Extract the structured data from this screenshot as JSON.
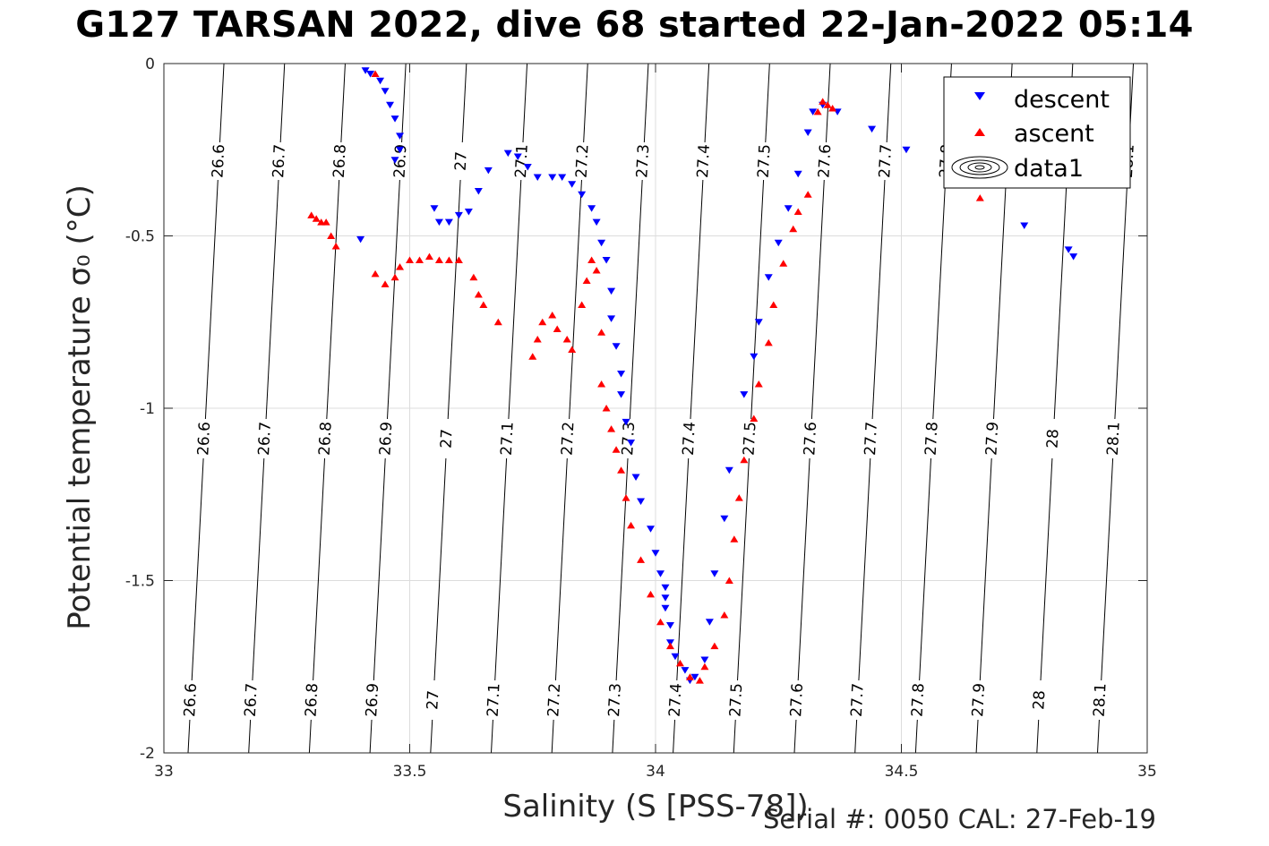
{
  "title": "G127 TARSAN 2022, dive 68 started 22-Jan-2022 05:14",
  "footer": "Serial #: 0050  CAL: 27-Feb-19",
  "chart_data": {
    "type": "scatter",
    "xlabel": "Salinity (S [PSS-78])",
    "ylabel": "Potential temperature σ₀ (°C)",
    "xlim": [
      33,
      35
    ],
    "ylim": [
      -2,
      0
    ],
    "x_ticks": [
      "33",
      "33.5",
      "34",
      "34.5",
      "35"
    ],
    "y_ticks": [
      "0",
      "-0.5",
      "-1",
      "-1.5",
      "-2"
    ],
    "grid": true,
    "legend_position": "top-right",
    "legend": [
      "descent",
      "ascent",
      "data1"
    ],
    "colors": {
      "descent": "#0000ff",
      "ascent": "#ff0000",
      "contour": "#000000",
      "grid": "#dcdcdc"
    },
    "contours": {
      "name": "data1",
      "levels": [
        "26.6",
        "26.7",
        "26.8",
        "26.9",
        "27",
        "27.1",
        "27.2",
        "27.3",
        "27.4",
        "27.5",
        "27.6",
        "27.7",
        "27.8",
        "27.9",
        "28",
        "28.1"
      ]
    },
    "series": [
      {
        "name": "descent",
        "marker": "triangle-down",
        "points": [
          [
            33.41,
            -0.02
          ],
          [
            33.42,
            -0.03
          ],
          [
            33.44,
            -0.05
          ],
          [
            33.45,
            -0.08
          ],
          [
            33.46,
            -0.12
          ],
          [
            33.47,
            -0.16
          ],
          [
            33.48,
            -0.21
          ],
          [
            33.48,
            -0.25
          ],
          [
            33.47,
            -0.28
          ],
          [
            33.4,
            -0.51
          ],
          [
            33.55,
            -0.42
          ],
          [
            33.56,
            -0.46
          ],
          [
            33.58,
            -0.46
          ],
          [
            33.6,
            -0.44
          ],
          [
            33.62,
            -0.43
          ],
          [
            33.64,
            -0.37
          ],
          [
            33.66,
            -0.31
          ],
          [
            33.7,
            -0.26
          ],
          [
            33.72,
            -0.27
          ],
          [
            33.74,
            -0.3
          ],
          [
            33.76,
            -0.33
          ],
          [
            33.79,
            -0.33
          ],
          [
            33.81,
            -0.33
          ],
          [
            33.83,
            -0.35
          ],
          [
            33.85,
            -0.38
          ],
          [
            33.87,
            -0.42
          ],
          [
            33.88,
            -0.46
          ],
          [
            33.89,
            -0.52
          ],
          [
            33.9,
            -0.57
          ],
          [
            33.91,
            -0.66
          ],
          [
            33.91,
            -0.74
          ],
          [
            33.92,
            -0.82
          ],
          [
            33.93,
            -0.9
          ],
          [
            33.93,
            -0.96
          ],
          [
            33.94,
            -1.04
          ],
          [
            33.95,
            -1.1
          ],
          [
            33.96,
            -1.2
          ],
          [
            33.97,
            -1.27
          ],
          [
            33.99,
            -1.35
          ],
          [
            34.0,
            -1.42
          ],
          [
            34.01,
            -1.48
          ],
          [
            34.02,
            -1.52
          ],
          [
            34.02,
            -1.55
          ],
          [
            34.02,
            -1.58
          ],
          [
            34.03,
            -1.63
          ],
          [
            34.03,
            -1.68
          ],
          [
            34.04,
            -1.72
          ],
          [
            34.06,
            -1.76
          ],
          [
            34.07,
            -1.79
          ],
          [
            34.08,
            -1.78
          ],
          [
            34.1,
            -1.73
          ],
          [
            34.11,
            -1.62
          ],
          [
            34.12,
            -1.48
          ],
          [
            34.14,
            -1.32
          ],
          [
            34.15,
            -1.18
          ],
          [
            34.18,
            -0.96
          ],
          [
            34.2,
            -0.85
          ],
          [
            34.21,
            -0.75
          ],
          [
            34.23,
            -0.62
          ],
          [
            34.25,
            -0.52
          ],
          [
            34.27,
            -0.42
          ],
          [
            34.29,
            -0.32
          ],
          [
            34.31,
            -0.2
          ],
          [
            34.32,
            -0.14
          ],
          [
            34.34,
            -0.12
          ],
          [
            34.37,
            -0.14
          ],
          [
            34.44,
            -0.19
          ],
          [
            34.51,
            -0.25
          ],
          [
            34.75,
            -0.47
          ],
          [
            34.84,
            -0.54
          ],
          [
            34.85,
            -0.56
          ]
        ]
      },
      {
        "name": "ascent",
        "marker": "triangle-up",
        "points": [
          [
            33.43,
            -0.03
          ],
          [
            33.3,
            -0.44
          ],
          [
            33.31,
            -0.45
          ],
          [
            33.32,
            -0.46
          ],
          [
            33.33,
            -0.46
          ],
          [
            33.34,
            -0.5
          ],
          [
            33.35,
            -0.53
          ],
          [
            33.43,
            -0.61
          ],
          [
            33.45,
            -0.64
          ],
          [
            33.47,
            -0.62
          ],
          [
            33.48,
            -0.59
          ],
          [
            33.5,
            -0.57
          ],
          [
            33.52,
            -0.57
          ],
          [
            33.54,
            -0.56
          ],
          [
            33.56,
            -0.57
          ],
          [
            33.58,
            -0.57
          ],
          [
            33.6,
            -0.57
          ],
          [
            33.63,
            -0.62
          ],
          [
            33.64,
            -0.67
          ],
          [
            33.65,
            -0.7
          ],
          [
            33.68,
            -0.75
          ],
          [
            33.75,
            -0.85
          ],
          [
            33.76,
            -0.8
          ],
          [
            33.77,
            -0.75
          ],
          [
            33.79,
            -0.73
          ],
          [
            33.8,
            -0.77
          ],
          [
            33.82,
            -0.8
          ],
          [
            33.83,
            -0.83
          ],
          [
            33.85,
            -0.7
          ],
          [
            33.86,
            -0.63
          ],
          [
            33.87,
            -0.57
          ],
          [
            33.88,
            -0.6
          ],
          [
            33.89,
            -0.78
          ],
          [
            33.89,
            -0.93
          ],
          [
            33.9,
            -1.0
          ],
          [
            33.91,
            -1.06
          ],
          [
            33.92,
            -1.12
          ],
          [
            33.93,
            -1.18
          ],
          [
            33.94,
            -1.26
          ],
          [
            33.95,
            -1.34
          ],
          [
            33.97,
            -1.44
          ],
          [
            33.99,
            -1.54
          ],
          [
            34.01,
            -1.62
          ],
          [
            34.03,
            -1.69
          ],
          [
            34.05,
            -1.74
          ],
          [
            34.07,
            -1.78
          ],
          [
            34.09,
            -1.79
          ],
          [
            34.1,
            -1.75
          ],
          [
            34.12,
            -1.69
          ],
          [
            34.14,
            -1.6
          ],
          [
            34.15,
            -1.5
          ],
          [
            34.16,
            -1.38
          ],
          [
            34.17,
            -1.26
          ],
          [
            34.18,
            -1.15
          ],
          [
            34.2,
            -1.03
          ],
          [
            34.21,
            -0.93
          ],
          [
            34.23,
            -0.81
          ],
          [
            34.24,
            -0.7
          ],
          [
            34.26,
            -0.58
          ],
          [
            34.28,
            -0.48
          ],
          [
            34.29,
            -0.43
          ],
          [
            34.31,
            -0.38
          ],
          [
            34.33,
            -0.14
          ],
          [
            34.34,
            -0.11
          ],
          [
            34.35,
            -0.12
          ],
          [
            34.36,
            -0.13
          ],
          [
            34.66,
            -0.39
          ]
        ]
      }
    ]
  }
}
